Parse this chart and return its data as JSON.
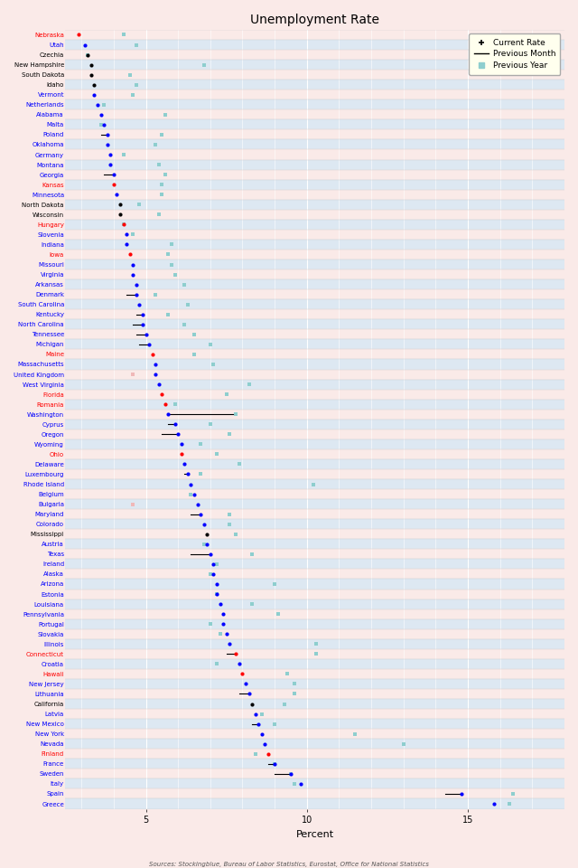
{
  "title": "Unemployment Rate",
  "xlabel": "Percent",
  "source": "Sources: Stockingblue, Bureau of Labor Statistics, Eurostat, Office for National Statistics",
  "xlim": [
    2.5,
    18.0
  ],
  "xticks": [
    5,
    10,
    15
  ],
  "bg_pink": "#faeae8",
  "bg_blue": "#dde8f2",
  "legend_bg": "#ffffee",
  "teal": "#8ecece",
  "pink_square": "#f0b8b8",
  "entries": [
    {
      "name": "Nebraska",
      "color": "red",
      "current": 2.9,
      "prev_month": 2.9,
      "prev_year": 4.3,
      "py_color": "teal"
    },
    {
      "name": "Utah",
      "color": "blue",
      "current": 3.1,
      "prev_month": 3.1,
      "prev_year": 4.7,
      "py_color": "teal"
    },
    {
      "name": "Czechia",
      "color": "black",
      "current": 3.2,
      "prev_month": 3.2,
      "prev_year": 3.2,
      "py_color": "teal"
    },
    {
      "name": "New Hampshire",
      "color": "black",
      "current": 3.3,
      "prev_month": 3.3,
      "prev_year": 6.8,
      "py_color": "teal"
    },
    {
      "name": "South Dakota",
      "color": "black",
      "current": 3.3,
      "prev_month": 3.3,
      "prev_year": 4.5,
      "py_color": "teal"
    },
    {
      "name": "Idaho",
      "color": "black",
      "current": 3.4,
      "prev_month": 3.4,
      "prev_year": 4.7,
      "py_color": "teal"
    },
    {
      "name": "Vermont",
      "color": "blue",
      "current": 3.4,
      "prev_month": 3.4,
      "prev_year": 4.6,
      "py_color": "teal"
    },
    {
      "name": "Netherlands",
      "color": "blue",
      "current": 3.5,
      "prev_month": 3.5,
      "prev_year": 3.7,
      "py_color": "teal"
    },
    {
      "name": "Alabama",
      "color": "blue",
      "current": 3.6,
      "prev_month": 3.6,
      "prev_year": 5.6,
      "py_color": "teal"
    },
    {
      "name": "Malta",
      "color": "blue",
      "current": 3.7,
      "prev_month": 3.7,
      "prev_year": 3.6,
      "py_color": "teal"
    },
    {
      "name": "Poland",
      "color": "blue",
      "current": 3.8,
      "prev_month": 3.6,
      "prev_year": 5.5,
      "py_color": "teal"
    },
    {
      "name": "Oklahoma",
      "color": "blue",
      "current": 3.8,
      "prev_month": 3.8,
      "prev_year": 5.3,
      "py_color": "teal"
    },
    {
      "name": "Germany",
      "color": "blue",
      "current": 3.9,
      "prev_month": 3.9,
      "prev_year": 4.3,
      "py_color": "teal"
    },
    {
      "name": "Montana",
      "color": "blue",
      "current": 3.9,
      "prev_month": 3.9,
      "prev_year": 5.4,
      "py_color": "teal"
    },
    {
      "name": "Georgia",
      "color": "blue",
      "current": 4.0,
      "prev_month": 3.7,
      "prev_year": 5.6,
      "py_color": "teal"
    },
    {
      "name": "Kansas",
      "color": "red",
      "current": 4.0,
      "prev_month": 4.0,
      "prev_year": 5.5,
      "py_color": "teal"
    },
    {
      "name": "Minnesota",
      "color": "blue",
      "current": 4.1,
      "prev_month": 4.1,
      "prev_year": 5.5,
      "py_color": "teal"
    },
    {
      "name": "North Dakota",
      "color": "black",
      "current": 4.2,
      "prev_month": 4.2,
      "prev_year": 4.8,
      "py_color": "teal"
    },
    {
      "name": "Wisconsin",
      "color": "black",
      "current": 4.2,
      "prev_month": 4.2,
      "prev_year": 5.4,
      "py_color": "teal"
    },
    {
      "name": "Hungary",
      "color": "red",
      "current": 4.3,
      "prev_month": 4.3,
      "prev_year": 4.3,
      "py_color": "teal"
    },
    {
      "name": "Slovenia",
      "color": "blue",
      "current": 4.4,
      "prev_month": 4.4,
      "prev_year": 4.6,
      "py_color": "teal"
    },
    {
      "name": "Indiana",
      "color": "blue",
      "current": 4.4,
      "prev_month": 4.4,
      "prev_year": 5.8,
      "py_color": "teal"
    },
    {
      "name": "Iowa",
      "color": "red",
      "current": 4.5,
      "prev_month": 4.5,
      "prev_year": 5.7,
      "py_color": "teal"
    },
    {
      "name": "Missouri",
      "color": "blue",
      "current": 4.6,
      "prev_month": 4.6,
      "prev_year": 5.8,
      "py_color": "teal"
    },
    {
      "name": "Virginia",
      "color": "blue",
      "current": 4.6,
      "prev_month": 4.6,
      "prev_year": 5.9,
      "py_color": "teal"
    },
    {
      "name": "Arkansas",
      "color": "blue",
      "current": 4.7,
      "prev_month": 4.7,
      "prev_year": 6.2,
      "py_color": "teal"
    },
    {
      "name": "Denmark",
      "color": "blue",
      "current": 4.7,
      "prev_month": 4.4,
      "prev_year": 5.3,
      "py_color": "teal"
    },
    {
      "name": "South Carolina",
      "color": "blue",
      "current": 4.8,
      "prev_month": 4.8,
      "prev_year": 6.3,
      "py_color": "teal"
    },
    {
      "name": "Kentucky",
      "color": "blue",
      "current": 4.9,
      "prev_month": 4.7,
      "prev_year": 5.7,
      "py_color": "teal"
    },
    {
      "name": "North Carolina",
      "color": "blue",
      "current": 4.9,
      "prev_month": 4.6,
      "prev_year": 6.2,
      "py_color": "teal"
    },
    {
      "name": "Tennessee",
      "color": "blue",
      "current": 5.0,
      "prev_month": 4.7,
      "prev_year": 6.5,
      "py_color": "teal"
    },
    {
      "name": "Michigan",
      "color": "blue",
      "current": 5.1,
      "prev_month": 4.8,
      "prev_year": 7.0,
      "py_color": "teal"
    },
    {
      "name": "Maine",
      "color": "red",
      "current": 5.2,
      "prev_month": 5.2,
      "prev_year": 6.5,
      "py_color": "teal"
    },
    {
      "name": "Massachusetts",
      "color": "blue",
      "current": 5.3,
      "prev_month": 5.3,
      "prev_year": 7.1,
      "py_color": "teal"
    },
    {
      "name": "United Kingdom",
      "color": "blue",
      "current": 5.3,
      "prev_month": 5.3,
      "prev_year": 4.6,
      "py_color": "pink"
    },
    {
      "name": "West Virginia",
      "color": "blue",
      "current": 5.4,
      "prev_month": 5.4,
      "prev_year": 8.2,
      "py_color": "teal"
    },
    {
      "name": "Florida",
      "color": "red",
      "current": 5.5,
      "prev_month": 5.5,
      "prev_year": 7.5,
      "py_color": "teal"
    },
    {
      "name": "Romania",
      "color": "red",
      "current": 5.6,
      "prev_month": 5.6,
      "prev_year": 5.9,
      "py_color": "teal"
    },
    {
      "name": "Washington",
      "color": "blue",
      "current": 5.7,
      "prev_month": 7.7,
      "prev_year": 7.8,
      "py_color": "teal"
    },
    {
      "name": "Cyprus",
      "color": "blue",
      "current": 5.9,
      "prev_month": 5.7,
      "prev_year": 7.0,
      "py_color": "teal"
    },
    {
      "name": "Oregon",
      "color": "blue",
      "current": 6.0,
      "prev_month": 5.5,
      "prev_year": 7.6,
      "py_color": "teal"
    },
    {
      "name": "Wyoming",
      "color": "blue",
      "current": 6.1,
      "prev_month": 6.1,
      "prev_year": 6.7,
      "py_color": "teal"
    },
    {
      "name": "Ohio",
      "color": "red",
      "current": 6.1,
      "prev_month": 6.1,
      "prev_year": 7.2,
      "py_color": "teal"
    },
    {
      "name": "Delaware",
      "color": "blue",
      "current": 6.2,
      "prev_month": 6.2,
      "prev_year": 7.9,
      "py_color": "teal"
    },
    {
      "name": "Luxembourg",
      "color": "blue",
      "current": 6.3,
      "prev_month": 6.2,
      "prev_year": 6.7,
      "py_color": "teal"
    },
    {
      "name": "Rhode Island",
      "color": "blue",
      "current": 6.4,
      "prev_month": 6.4,
      "prev_year": 10.2,
      "py_color": "teal"
    },
    {
      "name": "Belgium",
      "color": "blue",
      "current": 6.5,
      "prev_month": 6.5,
      "prev_year": 6.4,
      "py_color": "teal"
    },
    {
      "name": "Bulgaria",
      "color": "blue",
      "current": 6.6,
      "prev_month": 6.6,
      "prev_year": 4.6,
      "py_color": "pink"
    },
    {
      "name": "Maryland",
      "color": "blue",
      "current": 6.7,
      "prev_month": 6.4,
      "prev_year": 7.6,
      "py_color": "teal"
    },
    {
      "name": "Colorado",
      "color": "blue",
      "current": 6.8,
      "prev_month": 6.8,
      "prev_year": 7.6,
      "py_color": "teal"
    },
    {
      "name": "Mississippi",
      "color": "black",
      "current": 6.9,
      "prev_month": 6.9,
      "prev_year": 7.8,
      "py_color": "teal"
    },
    {
      "name": "Austria",
      "color": "blue",
      "current": 6.9,
      "prev_month": 6.9,
      "prev_year": 6.8,
      "py_color": "teal"
    },
    {
      "name": "Texas",
      "color": "blue",
      "current": 7.0,
      "prev_month": 6.4,
      "prev_year": 8.3,
      "py_color": "teal"
    },
    {
      "name": "Ireland",
      "color": "blue",
      "current": 7.1,
      "prev_month": 7.1,
      "prev_year": 7.2,
      "py_color": "teal"
    },
    {
      "name": "Alaska",
      "color": "blue",
      "current": 7.1,
      "prev_month": 7.1,
      "prev_year": 7.0,
      "py_color": "teal"
    },
    {
      "name": "Arizona",
      "color": "blue",
      "current": 7.2,
      "prev_month": 7.2,
      "prev_year": 9.0,
      "py_color": "teal"
    },
    {
      "name": "Estonia",
      "color": "blue",
      "current": 7.2,
      "prev_month": 7.2,
      "prev_year": 7.2,
      "py_color": "teal"
    },
    {
      "name": "Louisiana",
      "color": "blue",
      "current": 7.3,
      "prev_month": 7.3,
      "prev_year": 8.3,
      "py_color": "teal"
    },
    {
      "name": "Pennsylvania",
      "color": "blue",
      "current": 7.4,
      "prev_month": 7.4,
      "prev_year": 9.1,
      "py_color": "teal"
    },
    {
      "name": "Portugal",
      "color": "blue",
      "current": 7.4,
      "prev_month": 7.4,
      "prev_year": 7.0,
      "py_color": "teal"
    },
    {
      "name": "Slovakia",
      "color": "blue",
      "current": 7.5,
      "prev_month": 7.5,
      "prev_year": 7.3,
      "py_color": "teal"
    },
    {
      "name": "Illinois",
      "color": "blue",
      "current": 7.6,
      "prev_month": 7.6,
      "prev_year": 10.3,
      "py_color": "teal"
    },
    {
      "name": "Connecticut",
      "color": "red",
      "current": 7.8,
      "prev_month": 7.5,
      "prev_year": 10.3,
      "py_color": "teal"
    },
    {
      "name": "Croatia",
      "color": "blue",
      "current": 7.9,
      "prev_month": 7.9,
      "prev_year": 7.2,
      "py_color": "teal"
    },
    {
      "name": "Hawaii",
      "color": "red",
      "current": 8.0,
      "prev_month": 8.0,
      "prev_year": 9.4,
      "py_color": "teal"
    },
    {
      "name": "New Jersey",
      "color": "blue",
      "current": 8.1,
      "prev_month": 8.1,
      "prev_year": 9.6,
      "py_color": "teal"
    },
    {
      "name": "Lithuania",
      "color": "blue",
      "current": 8.2,
      "prev_month": 7.9,
      "prev_year": 9.6,
      "py_color": "teal"
    },
    {
      "name": "California",
      "color": "black",
      "current": 8.3,
      "prev_month": 8.3,
      "prev_year": 9.3,
      "py_color": "teal"
    },
    {
      "name": "Latvia",
      "color": "blue",
      "current": 8.4,
      "prev_month": 8.4,
      "prev_year": 8.6,
      "py_color": "teal"
    },
    {
      "name": "New Mexico",
      "color": "blue",
      "current": 8.5,
      "prev_month": 8.3,
      "prev_year": 9.0,
      "py_color": "teal"
    },
    {
      "name": "New York",
      "color": "blue",
      "current": 8.6,
      "prev_month": 8.6,
      "prev_year": 11.5,
      "py_color": "teal"
    },
    {
      "name": "Nevada",
      "color": "blue",
      "current": 8.7,
      "prev_month": 8.7,
      "prev_year": 13.0,
      "py_color": "teal"
    },
    {
      "name": "Finland",
      "color": "red",
      "current": 8.8,
      "prev_month": 8.8,
      "prev_year": 8.4,
      "py_color": "teal"
    },
    {
      "name": "France",
      "color": "blue",
      "current": 9.0,
      "prev_month": 8.8,
      "prev_year": 9.0,
      "py_color": "teal"
    },
    {
      "name": "Sweden",
      "color": "blue",
      "current": 9.5,
      "prev_month": 9.0,
      "prev_year": 9.5,
      "py_color": "teal"
    },
    {
      "name": "Italy",
      "color": "blue",
      "current": 9.8,
      "prev_month": 9.8,
      "prev_year": 9.6,
      "py_color": "teal"
    },
    {
      "name": "Spain",
      "color": "blue",
      "current": 14.8,
      "prev_month": 14.3,
      "prev_year": 16.4,
      "py_color": "teal"
    },
    {
      "name": "Greece",
      "color": "blue",
      "current": 15.8,
      "prev_month": 15.8,
      "prev_year": 16.3,
      "py_color": "teal"
    }
  ]
}
